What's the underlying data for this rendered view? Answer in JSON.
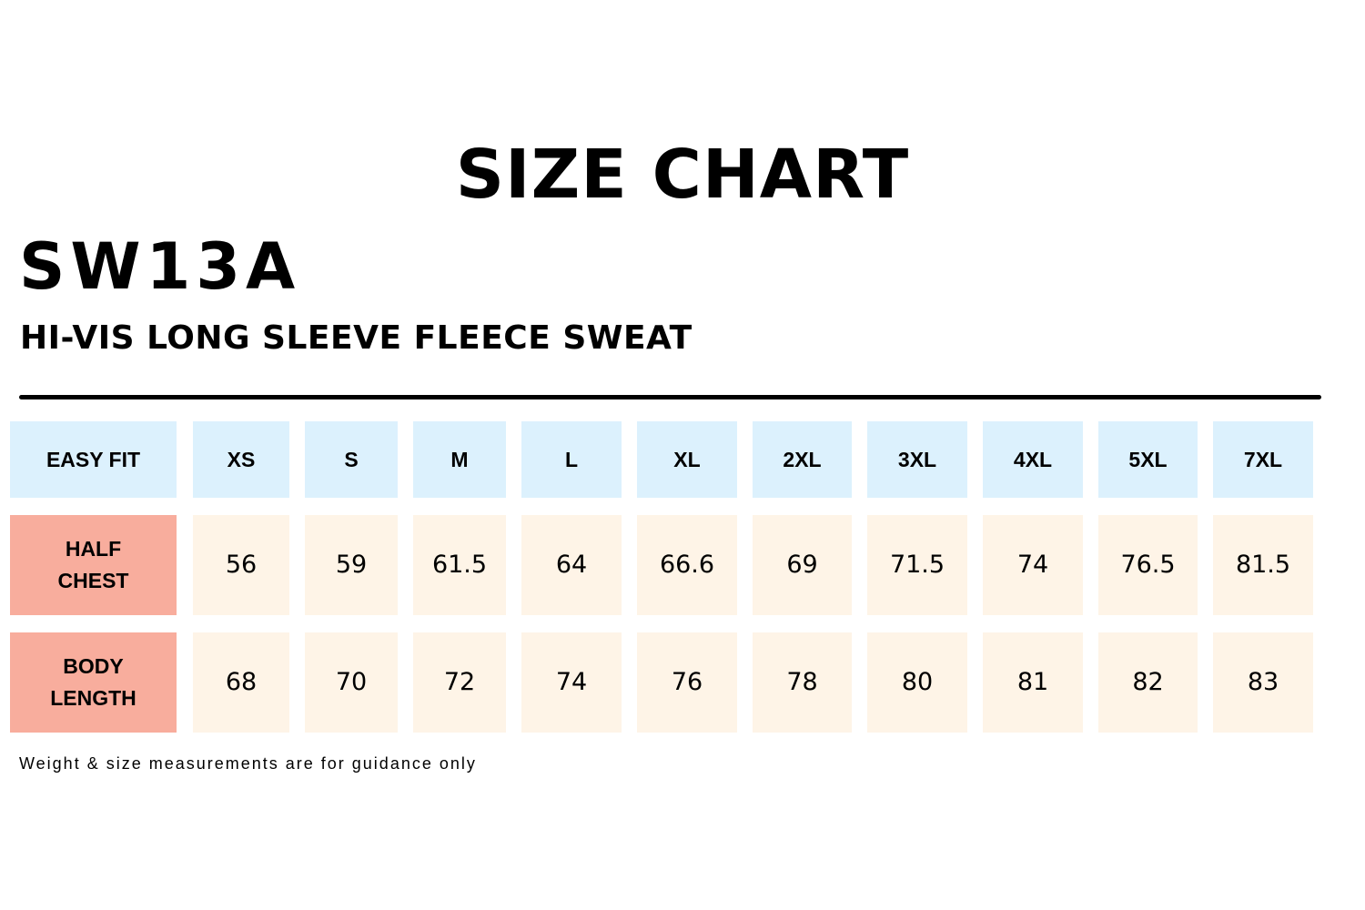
{
  "title": "SIZE CHART",
  "product_code": "SW13A",
  "product_name": "HI-VIS LONG SLEEVE FLEECE SWEAT",
  "colors": {
    "header_bg": "#dcf1fd",
    "label_bg": "#f8ad9d",
    "value_bg": "#fef4e7",
    "text": "#000000"
  },
  "table": {
    "corner_label": "EASY FIT",
    "sizes": [
      "XS",
      "S",
      "M",
      "L",
      "XL",
      "2XL",
      "3XL",
      "4XL",
      "5XL",
      "7XL"
    ],
    "rows": [
      {
        "label": "HALF\nCHEST",
        "values": [
          "56",
          "59",
          "61.5",
          "64",
          "66.6",
          "69",
          "71.5",
          "74",
          "76.5",
          "81.5"
        ]
      },
      {
        "label": "BODY\nLENGTH",
        "values": [
          "68",
          "70",
          "72",
          "74",
          "76",
          "78",
          "80",
          "81",
          "82",
          "83"
        ]
      }
    ]
  },
  "footnote": "Weight & size measurements are for guidance only"
}
